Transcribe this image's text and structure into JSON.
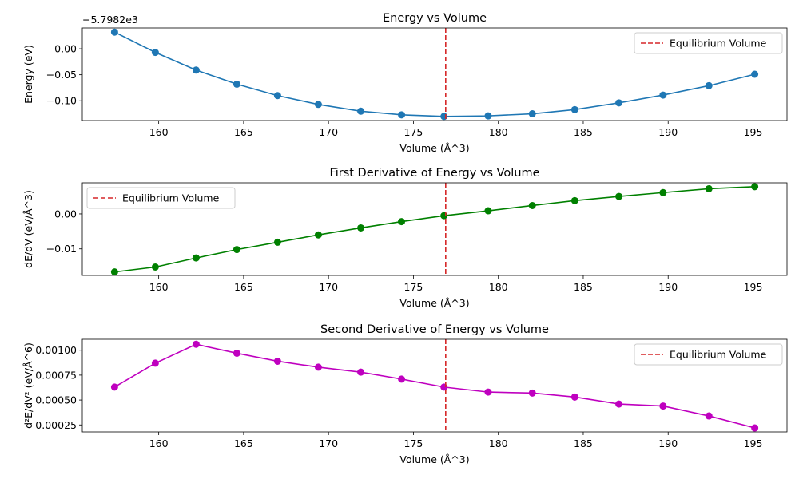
{
  "chart_data": [
    {
      "type": "line",
      "title": "Energy vs Volume",
      "xlabel": "Volume (Å^3)",
      "ylabel": "Energy (eV)",
      "offset_text": "−5.7982e3",
      "x": [
        157.4,
        159.8,
        162.2,
        164.6,
        167.0,
        169.4,
        171.9,
        174.3,
        176.8,
        179.4,
        182.0,
        184.5,
        187.1,
        189.7,
        192.4,
        195.1
      ],
      "series": [
        {
          "color": "#1f77b4",
          "values": [
            0.032,
            -0.007,
            -0.041,
            -0.068,
            -0.09,
            -0.107,
            -0.12,
            -0.127,
            -0.13,
            -0.129,
            -0.125,
            -0.117,
            -0.104,
            -0.089,
            -0.071,
            -0.049
          ]
        }
      ],
      "vline": {
        "x": 176.9,
        "color": "#d62728",
        "label": "Equilibrium Volume"
      },
      "xlim": [
        155.5,
        197.0
      ],
      "ylim": [
        -0.138,
        0.04
      ],
      "xticks": [
        160,
        165,
        170,
        175,
        180,
        185,
        190,
        195
      ],
      "yticks": [
        0.0,
        -0.05,
        -0.1
      ],
      "ytick_labels": [
        "0.00",
        "−0.05",
        "−0.10"
      ],
      "legend": "top-right"
    },
    {
      "type": "line",
      "title": "First Derivative of Energy vs Volume",
      "xlabel": "Volume (Å^3)",
      "ylabel": "dE/dV (eV/Å^3)",
      "x": [
        157.4,
        159.8,
        162.2,
        164.6,
        167.0,
        169.4,
        171.9,
        174.3,
        176.8,
        179.4,
        182.0,
        184.5,
        187.1,
        189.7,
        192.4,
        195.1
      ],
      "series": [
        {
          "color": "#008000",
          "values": [
            -0.0166,
            -0.0152,
            -0.0126,
            -0.0102,
            -0.0081,
            -0.006,
            -0.004,
            -0.0022,
            -0.0005,
            0.0009,
            0.0024,
            0.0038,
            0.005,
            0.0061,
            0.0072,
            0.0078
          ]
        }
      ],
      "vline": {
        "x": 176.9,
        "color": "#d62728",
        "label": "Equilibrium Volume"
      },
      "xlim": [
        155.5,
        197.0
      ],
      "ylim": [
        -0.0176,
        0.0089
      ],
      "xticks": [
        160,
        165,
        170,
        175,
        180,
        185,
        190,
        195
      ],
      "yticks": [
        0.0,
        -0.01
      ],
      "ytick_labels": [
        "0.00",
        "−0.01"
      ],
      "legend": "top-left"
    },
    {
      "type": "line",
      "title": "Second Derivative of Energy vs Volume",
      "xlabel": "Volume (Å^3)",
      "ylabel": "d²E/dV² (eV/Å^6)",
      "x": [
        157.4,
        159.8,
        162.2,
        164.6,
        167.0,
        169.4,
        171.9,
        174.3,
        176.8,
        179.4,
        182.0,
        184.5,
        187.1,
        189.7,
        192.4,
        195.1
      ],
      "series": [
        {
          "color": "#bf00bf",
          "values": [
            0.00063,
            0.00087,
            0.00106,
            0.00097,
            0.00089,
            0.00083,
            0.00078,
            0.00071,
            0.00063,
            0.00058,
            0.00057,
            0.00053,
            0.00046,
            0.00044,
            0.00034,
            0.00022
          ]
        }
      ],
      "vline": {
        "x": 176.9,
        "color": "#d62728",
        "label": "Equilibrium Volume"
      },
      "xlim": [
        155.5,
        197.0
      ],
      "ylim": [
        0.00018,
        0.00111
      ],
      "xticks": [
        160,
        165,
        170,
        175,
        180,
        185,
        190,
        195
      ],
      "yticks": [
        0.00025,
        0.0005,
        0.00075,
        0.001
      ],
      "ytick_labels": [
        "0.00025",
        "0.00050",
        "0.00075",
        "0.00100"
      ],
      "legend": "top-right"
    }
  ]
}
